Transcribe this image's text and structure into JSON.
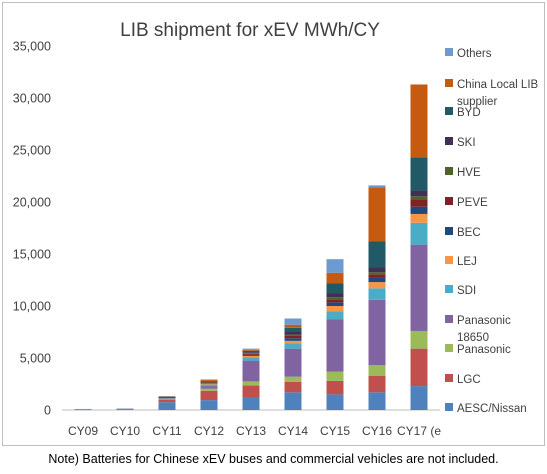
{
  "chart_data": {
    "type": "bar",
    "stacked": true,
    "title": "LIB shipment for xEV  MWh/CY",
    "xlabel": "",
    "ylabel": "",
    "categories": [
      "CY09",
      "CY10",
      "CY11",
      "CY12",
      "CY13",
      "CY14",
      "CY15",
      "CY16",
      "CY17 (e"
    ],
    "ylim": [
      0,
      35000
    ],
    "yticks": [
      0,
      5000,
      10000,
      15000,
      20000,
      25000,
      30000,
      35000
    ],
    "ytick_labels": [
      "0",
      "5,000",
      "10,000",
      "15,000",
      "20,000",
      "25,000",
      "30,000",
      "35,000"
    ],
    "grid": false,
    "legend_position": "right",
    "series": [
      {
        "name": "AESC/Nissan",
        "color": "#4f81bd",
        "values": [
          30,
          60,
          750,
          950,
          1250,
          1700,
          1500,
          1700,
          2300
        ]
      },
      {
        "name": "LGC",
        "color": "#c0504d",
        "values": [
          40,
          50,
          250,
          900,
          1100,
          1000,
          1300,
          1600,
          3600
        ]
      },
      {
        "name": "Panasonic",
        "color": "#9bbb59",
        "values": [
          20,
          20,
          50,
          200,
          400,
          500,
          900,
          1000,
          1700
        ]
      },
      {
        "name": "Panasonic 18650",
        "color": "#8064a2",
        "values": [
          0,
          0,
          50,
          250,
          2000,
          2700,
          5000,
          6300,
          8300
        ]
      },
      {
        "name": "SDI",
        "color": "#4bacc6",
        "values": [
          0,
          0,
          50,
          150,
          300,
          500,
          800,
          1100,
          2100
        ]
      },
      {
        "name": "LEJ",
        "color": "#f79646",
        "values": [
          0,
          0,
          30,
          100,
          150,
          250,
          500,
          600,
          850
        ]
      },
      {
        "name": "BEC",
        "color": "#1f497d",
        "values": [
          0,
          0,
          20,
          50,
          100,
          250,
          350,
          400,
          700
        ]
      },
      {
        "name": "PEVE",
        "color": "#7f2226",
        "values": [
          0,
          0,
          20,
          50,
          100,
          250,
          300,
          350,
          700
        ]
      },
      {
        "name": "HVE",
        "color": "#4f6228",
        "values": [
          0,
          0,
          10,
          50,
          50,
          100,
          200,
          200,
          300
        ]
      },
      {
        "name": "SKI",
        "color": "#3f3151",
        "values": [
          0,
          0,
          10,
          50,
          100,
          250,
          350,
          450,
          550
        ]
      },
      {
        "name": "BYD",
        "color": "#215967",
        "values": [
          0,
          0,
          30,
          50,
          150,
          400,
          1000,
          2500,
          3200
        ]
      },
      {
        "name": "China Local LIB supplier",
        "color": "#c55a11",
        "values": [
          0,
          0,
          50,
          100,
          100,
          300,
          1000,
          5200,
          7000
        ]
      },
      {
        "name": "Others",
        "color": "#6c9bd2",
        "values": [
          10,
          20,
          30,
          50,
          100,
          600,
          1300,
          200,
          0
        ]
      }
    ],
    "legend_order": [
      "Others",
      "China Local LIB supplier",
      "BYD",
      "SKI",
      "HVE",
      "PEVE",
      "BEC",
      "LEJ",
      "SDI",
      "Panasonic 18650",
      "Panasonic",
      "LGC",
      "AESC/Nissan"
    ]
  },
  "note": "Note) Batteries for Chinese xEV buses and commercial vehicles are not included."
}
